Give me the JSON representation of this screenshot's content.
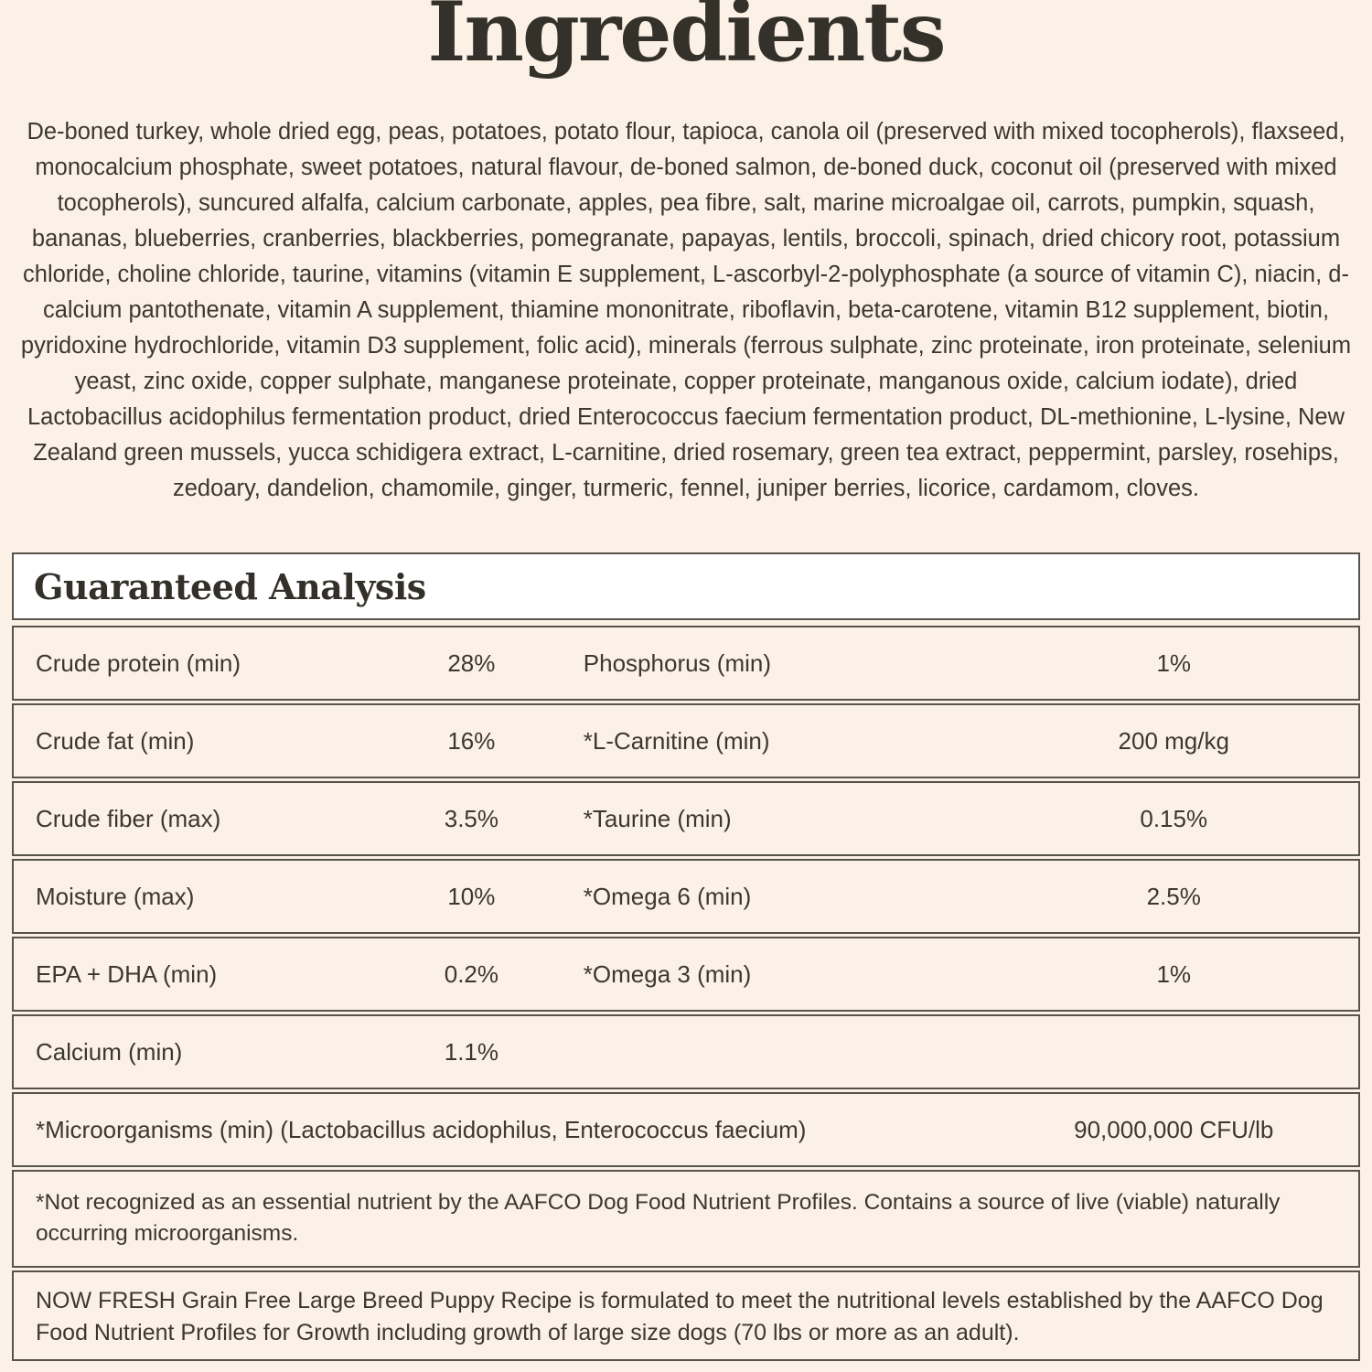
{
  "title": "Ingredients",
  "ingredients_text": "De-boned turkey, whole dried egg, peas, potatoes, potato flour, tapioca, canola oil (preserved with mixed tocopherols), flaxseed, monocalcium phosphate, sweet potatoes, natural flavour, de-boned salmon, de-boned duck, coconut oil (preserved with mixed tocopherols), suncured alfalfa, calcium carbonate, apples, pea fibre, salt, marine microalgae oil, carrots, pumpkin, squash, bananas, blueberries, cranberries, blackberries, pomegranate, papayas, lentils, broccoli, spinach, dried chicory root, potassium chloride, choline chloride, taurine, vitamins (vitamin E supplement, L-ascorbyl-2-polyphosphate (a source of vitamin C), niacin, d-calcium pantothenate, vitamin A supplement, thiamine mononitrate, riboflavin, beta-carotene, vitamin B12 supplement, biotin, pyridoxine hydrochloride, vitamin D3 supplement, folic acid), minerals (ferrous sulphate, zinc proteinate, iron proteinate, selenium yeast, zinc oxide, copper sulphate, manganese proteinate, copper proteinate, manganous oxide, calcium iodate), dried Lactobacillus acidophilus fermentation product, dried Enterococcus faecium fermentation product, DL-methionine, L-lysine, New Zealand green mussels, yucca schidigera extract, L-carnitine, dried rosemary, green tea extract, peppermint, parsley, rosehips, zedoary, dandelion, chamomile, ginger, turmeric, fennel, juniper berries, licorice, cardamom, cloves.",
  "analysis": {
    "heading": "Guaranteed Analysis",
    "rows": [
      {
        "label1": "Crude protein (min)",
        "value1": "28%",
        "label2": "Phosphorus (min)",
        "value2": "1%"
      },
      {
        "label1": "Crude fat (min)",
        "value1": "16%",
        "label2": "*L-Carnitine (min)",
        "value2": "200 mg/kg"
      },
      {
        "label1": "Crude fiber (max)",
        "value1": "3.5%",
        "label2": "*Taurine (min)",
        "value2": "0.15%"
      },
      {
        "label1": "Moisture (max)",
        "value1": "10%",
        "label2": "*Omega 6 (min)",
        "value2": "2.5%"
      },
      {
        "label1": "EPA + DHA (min)",
        "value1": "0.2%",
        "label2": "*Omega 3 (min)",
        "value2": "1%"
      },
      {
        "label1": "Calcium (min)",
        "value1": "1.1%",
        "label2": "",
        "value2": ""
      }
    ],
    "microorganisms_row": {
      "label": "*Microorganisms (min) (Lactobacillus acidophilus, Enterococcus faecium)",
      "value": "90,000,000 CFU/lb"
    },
    "footnotes": [
      "*Not recognized as an essential nutrient by the AAFCO Dog Food Nutrient Profiles. Contains a source of live (viable) naturally occurring microorganisms.",
      "NOW FRESH Grain Free Large Breed Puppy Recipe is formulated to meet the nutritional levels established by the AAFCO Dog Food Nutrient Profiles for Growth including growth of large size dogs (70 lbs or more as an adult)."
    ]
  },
  "colors": {
    "background": "#fcf1e6",
    "text": "#3b3831",
    "border": "#57544c",
    "header_background": "#ffffff"
  }
}
